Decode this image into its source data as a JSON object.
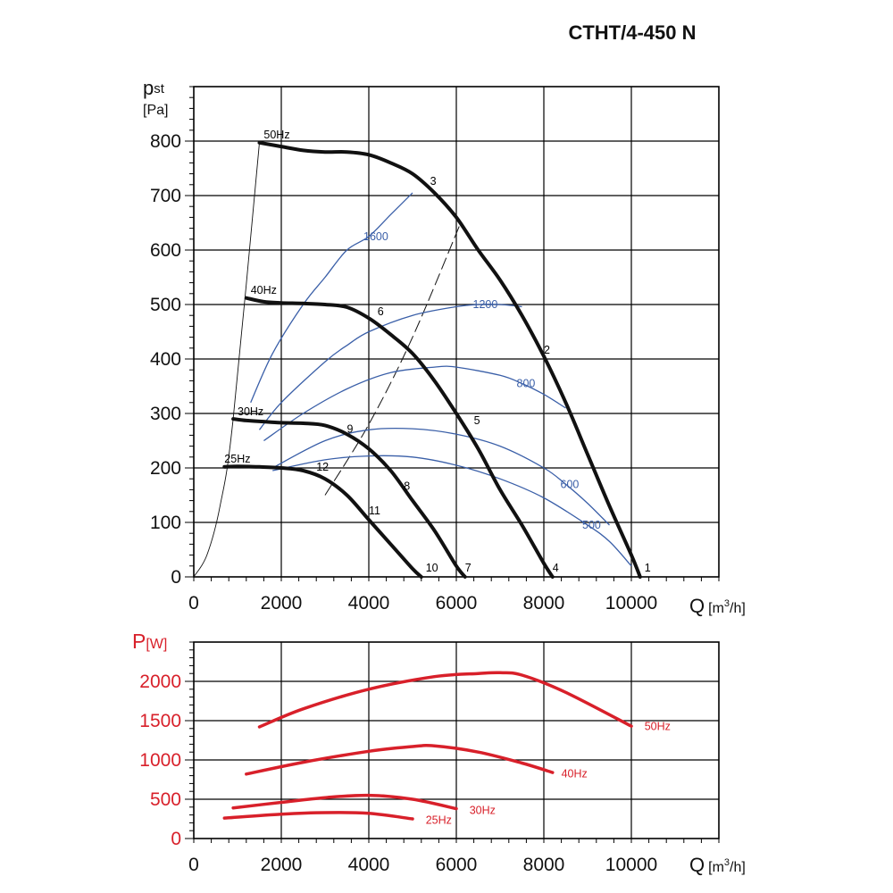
{
  "title": "CTHT/4-450 N",
  "colors": {
    "pressure_curves": "#111111",
    "efficiency_curves": "#3a5fa8",
    "power_curves": "#d8202a"
  },
  "chart_data": [
    {
      "type": "line",
      "ylabel_main": "p",
      "ylabel_sub": "st",
      "yunit": "[Pa]",
      "xlabel": "Q",
      "xunit_pre": "[m",
      "xunit_sup": "3",
      "xunit_post": "/h]",
      "xlim": [
        0,
        12000
      ],
      "ylim": [
        0,
        900
      ],
      "xticks": [
        0,
        2000,
        4000,
        6000,
        8000,
        10000
      ],
      "yticks": [
        0,
        100,
        200,
        300,
        400,
        500,
        600,
        700,
        800
      ],
      "grid": true,
      "series": [
        {
          "name": "50Hz",
          "x": [
            1500,
            2000,
            2500,
            3000,
            3500,
            4000,
            4500,
            5000,
            5500,
            6000,
            6500,
            7000,
            7500,
            8000,
            8500,
            9000,
            9500,
            10000,
            10200
          ],
          "y": [
            797,
            790,
            783,
            780,
            780,
            775,
            760,
            740,
            705,
            660,
            600,
            545,
            480,
            405,
            320,
            225,
            130,
            40,
            0
          ]
        },
        {
          "name": "40Hz",
          "x": [
            1200,
            1600,
            2000,
            2500,
            3000,
            3500,
            4000,
            4500,
            5000,
            5500,
            6000,
            6500,
            7000,
            7500,
            8000,
            8200
          ],
          "y": [
            512,
            505,
            503,
            502,
            500,
            495,
            475,
            445,
            410,
            360,
            300,
            235,
            160,
            95,
            25,
            0
          ]
        },
        {
          "name": "30Hz",
          "x": [
            900,
            1200,
            1600,
            2000,
            2500,
            3000,
            3500,
            4000,
            4500,
            5000,
            5500,
            6000,
            6200
          ],
          "y": [
            290,
            287,
            285,
            283,
            282,
            278,
            262,
            235,
            195,
            140,
            85,
            20,
            0
          ]
        },
        {
          "name": "25Hz",
          "x": [
            700,
            1000,
            1500,
            2000,
            2500,
            3000,
            3500,
            4000,
            4500,
            5000,
            5200
          ],
          "y": [
            202,
            203,
            202,
            200,
            195,
            180,
            150,
            105,
            60,
            15,
            0
          ]
        }
      ],
      "efficiency_curves": [
        {
          "label": "1600",
          "x": [
            1300,
            1800,
            2500,
            3000,
            3500,
            4000,
            4500,
            5000
          ],
          "y": [
            320,
            410,
            500,
            550,
            600,
            625,
            665,
            705
          ]
        },
        {
          "label": "1200",
          "x": [
            1500,
            2000,
            3000,
            3500,
            4000,
            5000,
            6000,
            6500,
            7000,
            7500
          ],
          "y": [
            270,
            320,
            395,
            425,
            450,
            480,
            496,
            500,
            500,
            496
          ]
        },
        {
          "label": "800",
          "x": [
            1600,
            2500,
            3500,
            4500,
            5500,
            6000,
            7000,
            7500,
            8000,
            8500
          ],
          "y": [
            250,
            300,
            345,
            375,
            385,
            385,
            370,
            355,
            335,
            310
          ]
        },
        {
          "label": "600",
          "x": [
            1800,
            3000,
            4000,
            5000,
            6000,
            7000,
            8000,
            8500,
            9000,
            9500
          ],
          "y": [
            200,
            250,
            270,
            272,
            262,
            240,
            200,
            170,
            135,
            95
          ]
        },
        {
          "label": "500",
          "x": [
            1800,
            3000,
            4000,
            5000,
            6000,
            7000,
            8000,
            9000,
            9500,
            10000
          ],
          "y": [
            195,
            215,
            222,
            220,
            205,
            180,
            145,
            95,
            65,
            20
          ]
        }
      ],
      "system_line": {
        "x": [
          3000,
          4000,
          5000,
          6100
        ],
        "y": [
          150,
          280,
          440,
          650
        ]
      },
      "envelope_line": {
        "x": [
          0,
          300,
          600,
          900,
          1500
        ],
        "y": [
          0,
          40,
          130,
          290,
          797
        ]
      },
      "point_labels": [
        {
          "text": "1",
          "x": 10300,
          "y": 10
        },
        {
          "text": "2",
          "x": 8000,
          "y": 410
        },
        {
          "text": "3",
          "x": 5400,
          "y": 720
        },
        {
          "text": "4",
          "x": 8200,
          "y": 10
        },
        {
          "text": "5",
          "x": 6400,
          "y": 280
        },
        {
          "text": "6",
          "x": 4200,
          "y": 480
        },
        {
          "text": "7",
          "x": 6200,
          "y": 10
        },
        {
          "text": "8",
          "x": 4800,
          "y": 160
        },
        {
          "text": "9",
          "x": 3500,
          "y": 265
        },
        {
          "text": "10",
          "x": 5300,
          "y": 10
        },
        {
          "text": "11",
          "x": 4000,
          "y": 115
        },
        {
          "text": "12",
          "x": 2800,
          "y": 195
        }
      ],
      "speed_labels": [
        {
          "text": "50Hz",
          "x": 1600,
          "y": 805
        },
        {
          "text": "40Hz",
          "x": 1300,
          "y": 520
        },
        {
          "text": "30Hz",
          "x": 1000,
          "y": 297
        },
        {
          "text": "25Hz",
          "x": 700,
          "y": 210
        }
      ]
    },
    {
      "type": "line",
      "ylabel_main": "P",
      "yunit": "[W]",
      "xlabel": "Q",
      "xunit_pre": "[m",
      "xunit_sup": "3",
      "xunit_post": "/h]",
      "xlim": [
        0,
        12000
      ],
      "ylim": [
        0,
        2500
      ],
      "xticks": [
        0,
        2000,
        4000,
        6000,
        8000,
        10000
      ],
      "yticks": [
        0,
        500,
        1000,
        1500,
        2000
      ],
      "grid": true,
      "series": [
        {
          "name": "50Hz",
          "x": [
            1500,
            2500,
            4000,
            5500,
            6500,
            7000,
            7500,
            8500,
            10000
          ],
          "y": [
            1420,
            1650,
            1900,
            2060,
            2100,
            2110,
            2080,
            1860,
            1430
          ]
        },
        {
          "name": "40Hz",
          "x": [
            1200,
            2500,
            4000,
            5000,
            5500,
            6500,
            7500,
            8200
          ],
          "y": [
            820,
            970,
            1110,
            1170,
            1180,
            1100,
            960,
            840
          ]
        },
        {
          "name": "30Hz",
          "x": [
            900,
            2000,
            3000,
            4000,
            5000,
            6000
          ],
          "y": [
            390,
            460,
            520,
            550,
            500,
            380
          ]
        },
        {
          "name": "25Hz",
          "x": [
            700,
            2000,
            3000,
            4000,
            5000
          ],
          "y": [
            260,
            310,
            330,
            320,
            250
          ]
        }
      ],
      "series_labels": [
        {
          "text": "50Hz",
          "x": 10300,
          "y": 1380
        },
        {
          "text": "40Hz",
          "x": 8400,
          "y": 780
        },
        {
          "text": "30Hz",
          "x": 6300,
          "y": 310
        },
        {
          "text": "25Hz",
          "x": 5300,
          "y": 190
        }
      ]
    }
  ]
}
